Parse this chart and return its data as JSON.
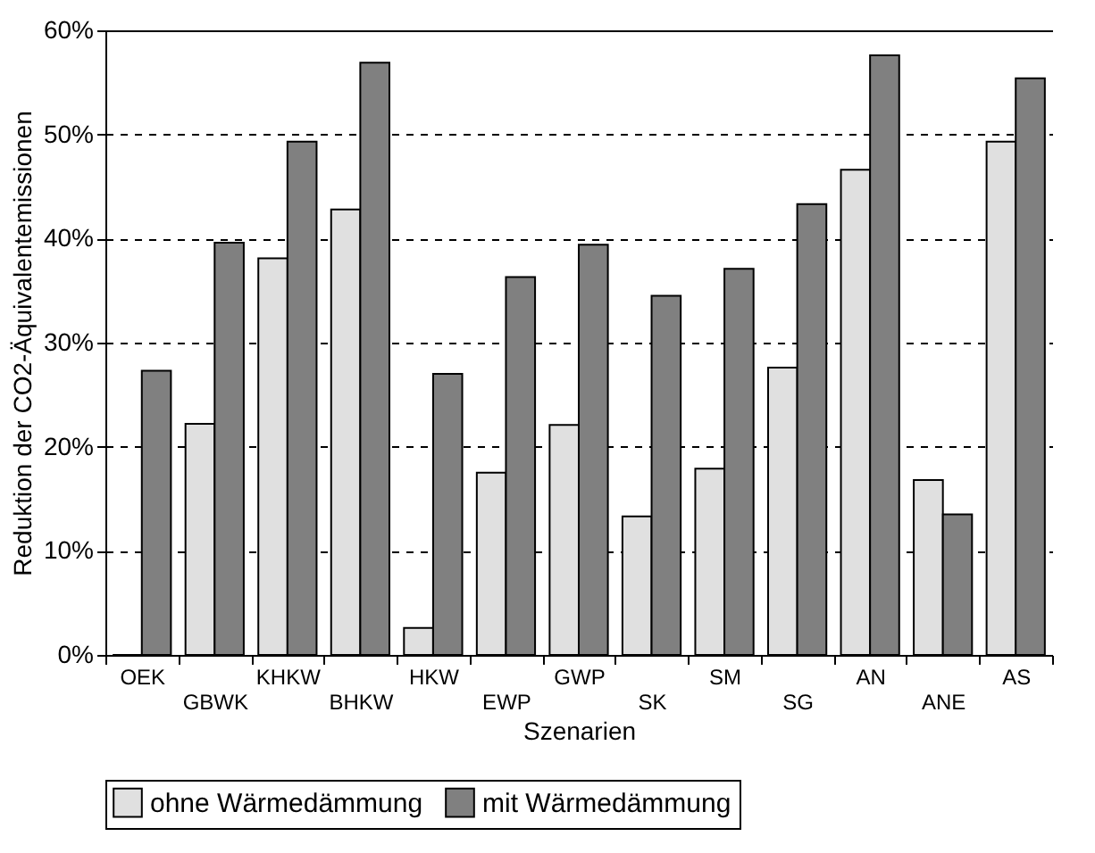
{
  "chart_data": {
    "type": "bar",
    "xlabel": "Szenarien",
    "ylabel": "Reduktion der CO2-Äquivalentemissionen",
    "categories": [
      "OEK",
      "GBWK",
      "KHKW",
      "BHKW",
      "HKW",
      "EWP",
      "GWP",
      "SK",
      "SM",
      "SG",
      "AN",
      "ANE",
      "AS"
    ],
    "series": [
      {
        "name": "ohne Wärmedämmung",
        "color": "#e0e0e0",
        "values": [
          0,
          22.2,
          38.1,
          42.8,
          2.6,
          17.5,
          22.1,
          13.3,
          17.9,
          27.6,
          46.6,
          16.8,
          49.3
        ]
      },
      {
        "name": "mit Wärmedämmung",
        "color": "#808080",
        "values": [
          27.3,
          39.6,
          49.3,
          56.9,
          27.0,
          36.3,
          39.4,
          34.5,
          37.1,
          43.3,
          57.6,
          13.5,
          55.4
        ]
      }
    ],
    "ylim": [
      0,
      60
    ],
    "yticks": [
      {
        "value": 0,
        "label": "0%"
      },
      {
        "value": 10,
        "label": "10%"
      },
      {
        "value": 20,
        "label": "20%"
      },
      {
        "value": 30,
        "label": "30%"
      },
      {
        "value": 40,
        "label": "40%"
      },
      {
        "value": 50,
        "label": "50%"
      },
      {
        "value": 60,
        "label": "60%"
      }
    ],
    "grid": "y",
    "legend": "bottom"
  }
}
